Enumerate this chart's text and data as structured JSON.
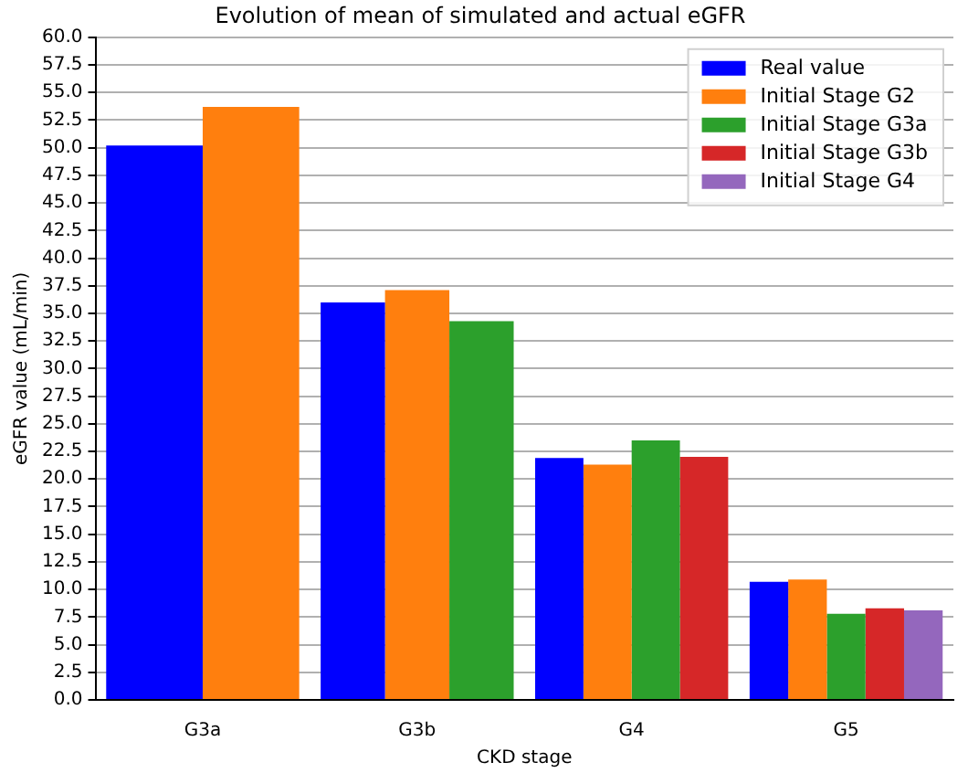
{
  "chart_data": {
    "type": "bar",
    "title": "Evolution of mean of simulated and actual eGFR",
    "xlabel": "CKD stage",
    "ylabel": "eGFR value (mL/min)",
    "categories": [
      "G3a",
      "G3b",
      "G4",
      "G5"
    ],
    "series": [
      {
        "name": "Real value",
        "color": "#0000ff",
        "values": [
          50.2,
          36.0,
          21.9,
          10.7
        ]
      },
      {
        "name": "Initial Stage G2",
        "color": "#ff7f0e",
        "values": [
          53.7,
          37.1,
          21.3,
          10.9
        ]
      },
      {
        "name": "Initial Stage G3a",
        "color": "#2ca02c",
        "values": [
          null,
          34.3,
          23.5,
          7.8
        ]
      },
      {
        "name": "Initial Stage G3b",
        "color": "#d62728",
        "values": [
          null,
          null,
          22.0,
          8.3
        ]
      },
      {
        "name": "Initial Stage G4",
        "color": "#9467bd",
        "values": [
          null,
          null,
          null,
          8.1
        ]
      }
    ],
    "ylim": [
      0,
      60
    ],
    "yticks": [
      {
        "value": 0,
        "label": "0.0"
      },
      {
        "value": 2.5,
        "label": "2.5"
      },
      {
        "value": 5,
        "label": "5.0"
      },
      {
        "value": 7.5,
        "label": "7.5"
      },
      {
        "value": 10,
        "label": "10.0"
      },
      {
        "value": 12.5,
        "label": "12.5"
      },
      {
        "value": 15,
        "label": "15.0"
      },
      {
        "value": 17.5,
        "label": "17.5"
      },
      {
        "value": 20,
        "label": "20.0"
      },
      {
        "value": 22.5,
        "label": "22.5"
      },
      {
        "value": 25,
        "label": "25.0"
      },
      {
        "value": 27.5,
        "label": "27.5"
      },
      {
        "value": 30,
        "label": "30.0"
      },
      {
        "value": 32.5,
        "label": "32.5"
      },
      {
        "value": 35,
        "label": "35.0"
      },
      {
        "value": 37.5,
        "label": "37.5"
      },
      {
        "value": 40,
        "label": "40.0"
      },
      {
        "value": 42.5,
        "label": "42.5"
      },
      {
        "value": 45,
        "label": "45.0"
      },
      {
        "value": 47.5,
        "label": "47.5"
      },
      {
        "value": 50,
        "label": "50.0"
      },
      {
        "value": 52.5,
        "label": "52.5"
      },
      {
        "value": 55,
        "label": "55.0"
      },
      {
        "value": 57.5,
        "label": "57.5"
      },
      {
        "value": 60,
        "label": "60.0"
      }
    ],
    "grid": "y",
    "legend": "top right"
  }
}
